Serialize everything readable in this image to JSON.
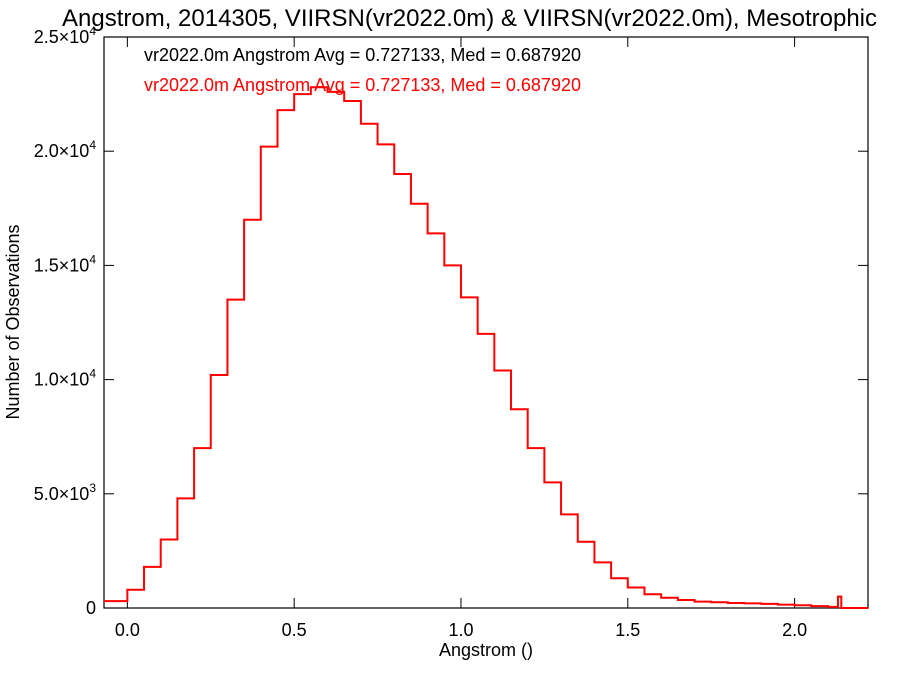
{
  "chart_data": {
    "type": "line",
    "title": "Angstrom, 2014305, VIIRSN(vr2022.0m) & VIIRSN(vr2022.0m), Mesotrophic",
    "xlabel": "Angstrom ()",
    "ylabel": "Number of Observations",
    "xlim": [
      -0.07,
      2.22
    ],
    "ylim": [
      0,
      25000
    ],
    "x_ticks": [
      0.0,
      0.5,
      1.0,
      1.5,
      2.0
    ],
    "x_tick_labels": [
      "0.0",
      "0.5",
      "1.0",
      "1.5",
      "2.0"
    ],
    "y_ticks": [
      0,
      5000,
      10000,
      15000,
      20000,
      25000
    ],
    "y_tick_labels": [
      {
        "mant": "0",
        "exp": ""
      },
      {
        "mant": "5.0×10",
        "exp": "3"
      },
      {
        "mant": "1.0×10",
        "exp": "4"
      },
      {
        "mant": "1.5×10",
        "exp": "4"
      },
      {
        "mant": "2.0×10",
        "exp": "4"
      },
      {
        "mant": "2.5×10",
        "exp": "4"
      }
    ],
    "annotations": [
      {
        "text": "vr2022.0m Angstrom Avg = 0.727133, Med = 0.687920",
        "color": "#000000"
      },
      {
        "text": "vr2022.0m Angstrom Avg = 0.727133, Med = 0.687920",
        "color": "#ff0000"
      }
    ],
    "series": [
      {
        "color": "#ff0000",
        "style": "step",
        "x": [
          -0.07,
          0.0,
          0.05,
          0.1,
          0.15,
          0.2,
          0.25,
          0.3,
          0.35,
          0.4,
          0.45,
          0.5,
          0.55,
          0.6,
          0.65,
          0.7,
          0.75,
          0.8,
          0.85,
          0.9,
          0.95,
          1.0,
          1.05,
          1.1,
          1.15,
          1.2,
          1.25,
          1.3,
          1.35,
          1.4,
          1.45,
          1.5,
          1.55,
          1.6,
          1.65,
          1.7,
          1.75,
          1.8,
          1.85,
          1.9,
          1.95,
          2.0,
          2.05,
          2.1,
          2.13,
          2.14,
          2.15,
          2.2
        ],
        "y": [
          300,
          800,
          1800,
          3000,
          4800,
          7000,
          10200,
          13500,
          17000,
          20200,
          21800,
          22500,
          22800,
          22600,
          22200,
          21200,
          20300,
          19000,
          17700,
          16400,
          15000,
          13600,
          12000,
          10400,
          8700,
          7000,
          5500,
          4100,
          2900,
          2000,
          1300,
          900,
          600,
          450,
          350,
          280,
          250,
          220,
          200,
          180,
          150,
          120,
          80,
          50,
          500,
          0,
          0,
          0
        ]
      }
    ]
  }
}
